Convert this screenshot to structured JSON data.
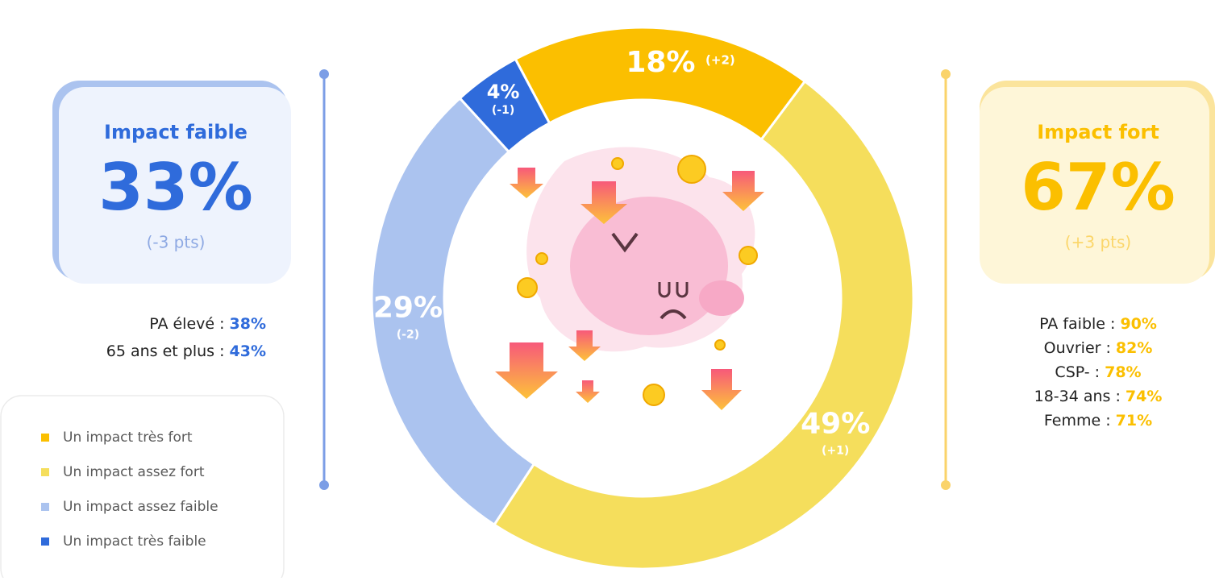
{
  "chart_data": {
    "type": "donut",
    "categories": [
      "Un impact très fort",
      "Un impact assez fort",
      "Un impact assez faible",
      "Un impact très faible"
    ],
    "values": [
      18,
      49,
      29,
      4
    ],
    "value_labels": [
      "18%",
      "49%",
      "29%",
      "4%"
    ],
    "change_labels": [
      "(+2)",
      "(+1)",
      "(-2)",
      "(-1)"
    ],
    "colors": [
      "#FBBF00",
      "#F5DE5C",
      "#ABC3EF",
      "#2F6BDB"
    ]
  },
  "left_panel": {
    "title": "Impact faible",
    "value": "33%",
    "change": "(-3 pts)",
    "details": [
      {
        "label": "PA élevé :",
        "value": "38%"
      },
      {
        "label": "65 ans et plus :",
        "value": "43%"
      }
    ]
  },
  "right_panel": {
    "title": "Impact fort",
    "value": "67%",
    "change": "(+3 pts)",
    "details": [
      {
        "label": "PA faible :",
        "value": "90%"
      },
      {
        "label": "Ouvrier :",
        "value": "82%"
      },
      {
        "label": "CSP- :",
        "value": "78%"
      },
      {
        "label": "18-34 ans :",
        "value": "74%"
      },
      {
        "label": "Femme :",
        "value": "71%"
      }
    ]
  }
}
